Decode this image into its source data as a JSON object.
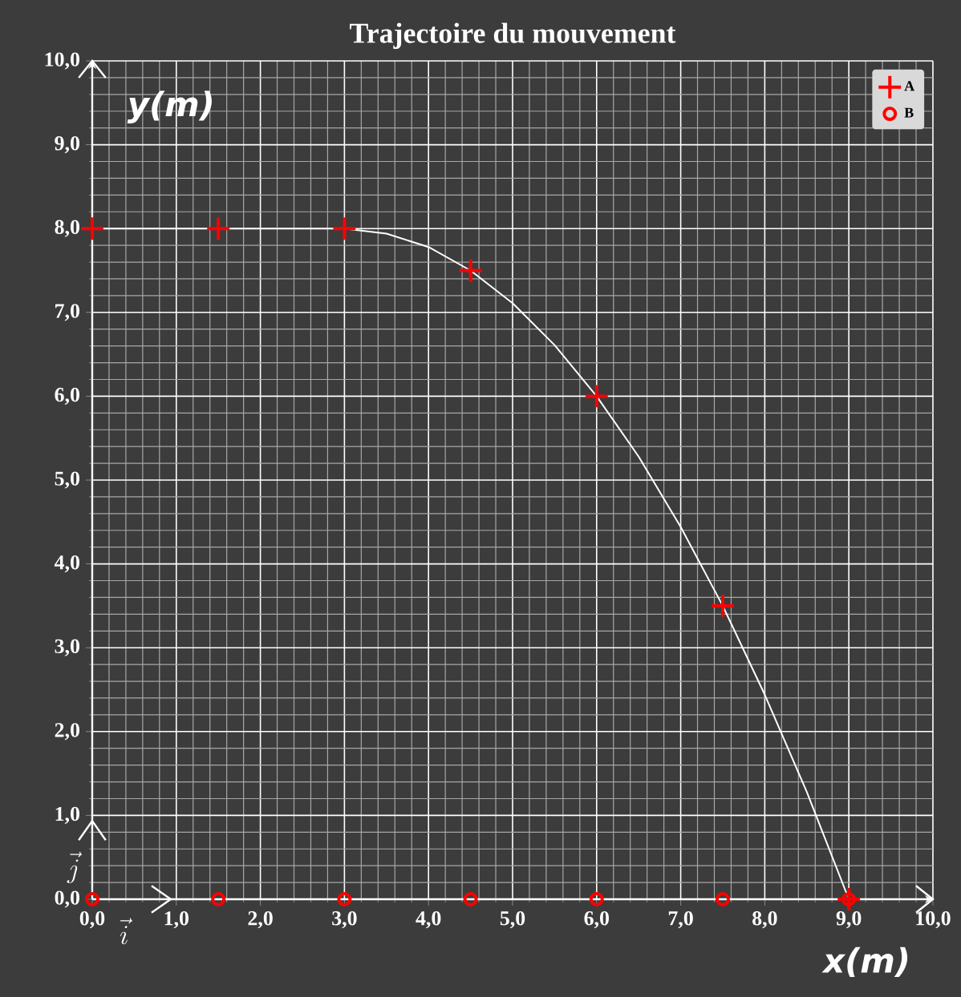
{
  "chart_data": {
    "type": "scatter",
    "title": "Trajectoire du mouvement",
    "xlabel": "x(m)",
    "ylabel": "y(m)",
    "annotations": [
      "\\vec{i}",
      "\\vec{j}"
    ],
    "xlim": [
      0,
      10
    ],
    "ylim": [
      0,
      10
    ],
    "xticks": [
      {
        "value": 0,
        "label": "0,0"
      },
      {
        "value": 1,
        "label": "1,0"
      },
      {
        "value": 2,
        "label": "2,0"
      },
      {
        "value": 3,
        "label": "3,0"
      },
      {
        "value": 4,
        "label": "4,0"
      },
      {
        "value": 5,
        "label": "5,0"
      },
      {
        "value": 6,
        "label": "6,0"
      },
      {
        "value": 7,
        "label": "7,0"
      },
      {
        "value": 8,
        "label": "8,0"
      },
      {
        "value": 9,
        "label": "9,0"
      },
      {
        "value": 10,
        "label": "10,0"
      }
    ],
    "yticks": [
      {
        "value": 0,
        "label": "0,0"
      },
      {
        "value": 1,
        "label": "1,0"
      },
      {
        "value": 2,
        "label": "2,0"
      },
      {
        "value": 3,
        "label": "3,0"
      },
      {
        "value": 4,
        "label": "4,0"
      },
      {
        "value": 5,
        "label": "5,0"
      },
      {
        "value": 6,
        "label": "6,0"
      },
      {
        "value": 7,
        "label": "7,0"
      },
      {
        "value": 8,
        "label": "8,0"
      },
      {
        "value": 9,
        "label": "9,0"
      },
      {
        "value": 10,
        "label": "10,0"
      }
    ],
    "grid": true,
    "legend": "top right",
    "series": [
      {
        "type": "line",
        "color": "#ffffff",
        "marker": "none",
        "x": [
          0,
          1,
          2,
          3,
          3.5,
          4,
          4.5,
          5,
          5.5,
          6,
          6.5,
          7,
          7.5,
          8,
          8.5,
          9
        ],
        "values": [
          8,
          8,
          8,
          8,
          7.94,
          7.78,
          7.5,
          7.11,
          6.61,
          6,
          5.28,
          4.44,
          3.5,
          2.44,
          1.28,
          0
        ]
      },
      {
        "name": "A",
        "color": "#ff0000",
        "marker": "cross",
        "x": [
          0,
          1.5,
          3,
          4.5,
          6,
          7.5,
          9
        ],
        "values": [
          8,
          8,
          8,
          7.5,
          6,
          3.5,
          0
        ]
      },
      {
        "name": "B",
        "color": "#ff0000",
        "marker": "circle",
        "x": [
          0,
          1.5,
          3,
          4.5,
          6,
          7.5,
          9
        ],
        "values": [
          0,
          0,
          0,
          0,
          0,
          0,
          0
        ]
      }
    ]
  }
}
